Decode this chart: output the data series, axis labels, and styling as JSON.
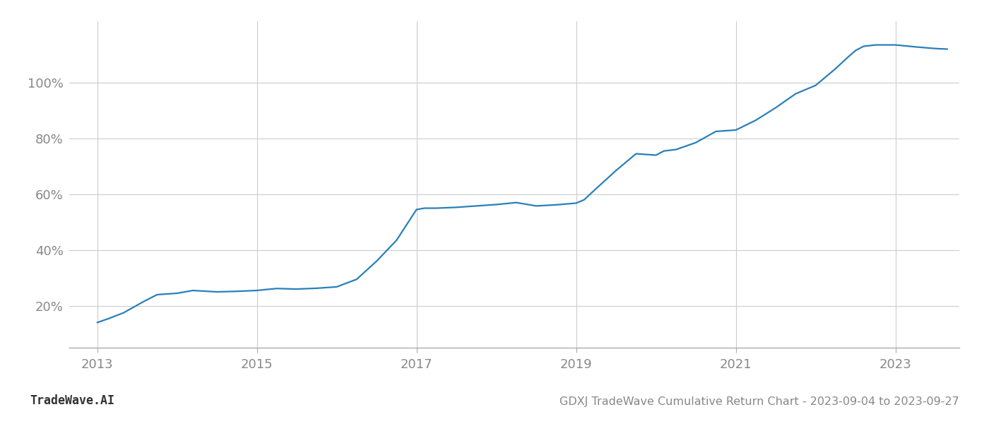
{
  "title": "GDXJ TradeWave Cumulative Return Chart - 2023-09-04 to 2023-09-27",
  "watermark": "TradeWave.AI",
  "line_color": "#2980b9",
  "background_color": "#ffffff",
  "grid_color": "#cccccc",
  "x_values": [
    2013.0,
    2013.15,
    2013.33,
    2013.58,
    2013.75,
    2014.0,
    2014.2,
    2014.5,
    2014.75,
    2015.0,
    2015.1,
    2015.25,
    2015.5,
    2015.75,
    2016.0,
    2016.25,
    2016.5,
    2016.75,
    2017.0,
    2017.1,
    2017.25,
    2017.5,
    2017.75,
    2018.0,
    2018.25,
    2018.5,
    2018.75,
    2019.0,
    2019.1,
    2019.25,
    2019.5,
    2019.75,
    2020.0,
    2020.1,
    2020.25,
    2020.5,
    2020.75,
    2021.0,
    2021.25,
    2021.5,
    2021.75,
    2022.0,
    2022.25,
    2022.4,
    2022.5,
    2022.6,
    2022.75,
    2023.0,
    2023.25,
    2023.5,
    2023.65
  ],
  "y_values": [
    14.0,
    15.5,
    17.5,
    21.5,
    24.0,
    24.5,
    25.5,
    25.0,
    25.2,
    25.5,
    25.8,
    26.2,
    26.0,
    26.3,
    26.8,
    29.5,
    36.0,
    43.5,
    54.5,
    55.0,
    55.0,
    55.3,
    55.8,
    56.3,
    57.0,
    55.8,
    56.2,
    56.8,
    58.0,
    62.0,
    68.5,
    74.5,
    74.0,
    75.5,
    76.0,
    78.5,
    82.5,
    83.0,
    86.5,
    91.0,
    96.0,
    99.0,
    105.0,
    109.0,
    111.5,
    113.0,
    113.5,
    113.5,
    112.8,
    112.2,
    112.0
  ],
  "yticks": [
    20,
    40,
    60,
    80,
    100
  ],
  "xticks": [
    2013,
    2015,
    2017,
    2019,
    2021,
    2023
  ],
  "xlim": [
    2012.65,
    2023.8
  ],
  "ylim": [
    5,
    122
  ],
  "line_width": 1.6,
  "title_fontsize": 11.5,
  "tick_fontsize": 13,
  "watermark_fontsize": 12
}
